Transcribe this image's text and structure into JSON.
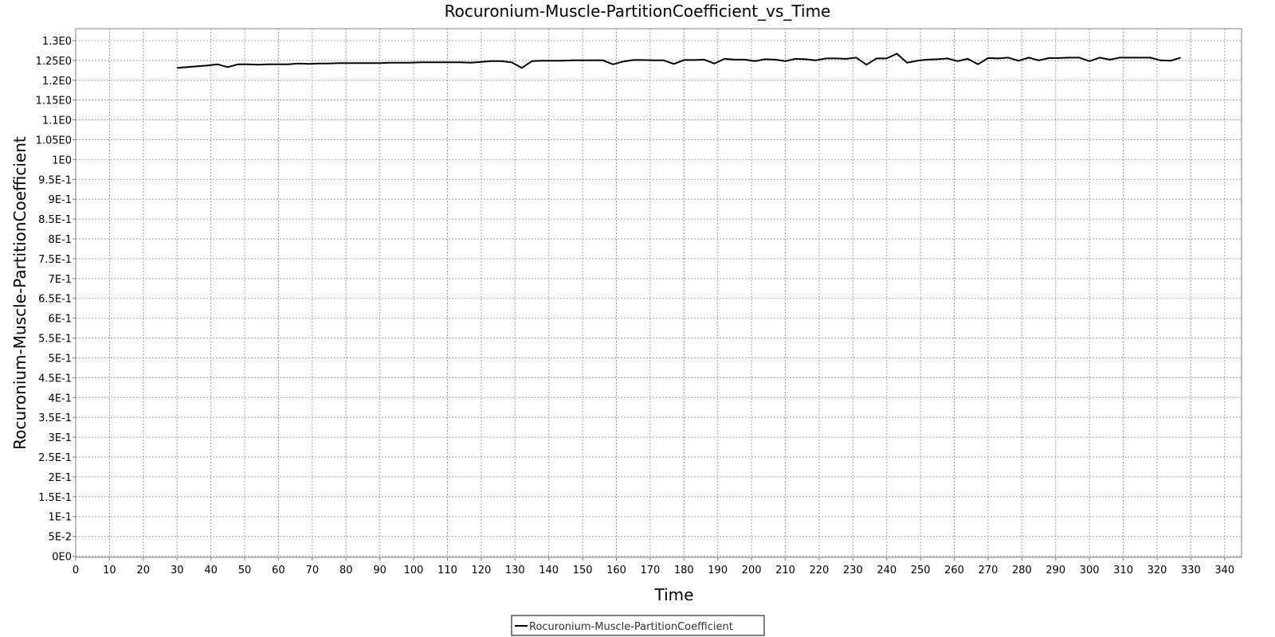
{
  "chart_data": {
    "type": "line",
    "title": "Rocuronium-Muscle-PartitionCoefficient_vs_Time",
    "xlabel": "Time",
    "ylabel": "Rocuronium-Muscle-PartitionCoefficient",
    "xlim": [
      0,
      345
    ],
    "ylim": [
      -0.003,
      1.33
    ],
    "grid": true,
    "legend_position": "bottom-center",
    "x_ticks": [
      0,
      10,
      20,
      30,
      40,
      50,
      60,
      70,
      80,
      90,
      100,
      110,
      120,
      130,
      140,
      150,
      160,
      170,
      180,
      190,
      200,
      210,
      220,
      230,
      240,
      250,
      260,
      270,
      280,
      290,
      300,
      310,
      320,
      330,
      340
    ],
    "y_ticks": [
      {
        "value": 0,
        "label": "0E0"
      },
      {
        "value": 0.05,
        "label": "5E-2"
      },
      {
        "value": 0.1,
        "label": "1E-1"
      },
      {
        "value": 0.15,
        "label": "1.5E-1"
      },
      {
        "value": 0.2,
        "label": "2E-1"
      },
      {
        "value": 0.25,
        "label": "2.5E-1"
      },
      {
        "value": 0.3,
        "label": "3E-1"
      },
      {
        "value": 0.35,
        "label": "3.5E-1"
      },
      {
        "value": 0.4,
        "label": "4E-1"
      },
      {
        "value": 0.45,
        "label": "4.5E-1"
      },
      {
        "value": 0.5,
        "label": "5E-1"
      },
      {
        "value": 0.55,
        "label": "5.5E-1"
      },
      {
        "value": 0.6,
        "label": "6E-1"
      },
      {
        "value": 0.65,
        "label": "6.5E-1"
      },
      {
        "value": 0.7,
        "label": "7E-1"
      },
      {
        "value": 0.75,
        "label": "7.5E-1"
      },
      {
        "value": 0.8,
        "label": "8E-1"
      },
      {
        "value": 0.85,
        "label": "8.5E-1"
      },
      {
        "value": 0.9,
        "label": "9E-1"
      },
      {
        "value": 0.95,
        "label": "9.5E-1"
      },
      {
        "value": 1.0,
        "label": "1E0"
      },
      {
        "value": 1.05,
        "label": "1.05E0"
      },
      {
        "value": 1.1,
        "label": "1.1E0"
      },
      {
        "value": 1.15,
        "label": "1.15E0"
      },
      {
        "value": 1.2,
        "label": "1.2E0"
      },
      {
        "value": 1.25,
        "label": "1.25E0"
      },
      {
        "value": 1.3,
        "label": "1.3E0"
      }
    ],
    "series": [
      {
        "name": "Rocuronium-Muscle-PartitionCoefficient",
        "color": "#000000",
        "x": [
          30,
          33,
          36,
          39,
          42,
          45,
          48,
          51,
          54,
          57,
          60,
          63,
          66,
          69,
          72,
          75,
          78,
          81,
          84,
          87,
          90,
          93,
          96,
          99,
          102,
          105,
          108,
          111,
          114,
          117,
          120,
          123,
          126,
          129,
          132,
          135,
          138,
          141,
          144,
          147,
          150,
          153,
          156,
          159,
          162,
          165,
          168,
          171,
          174,
          177,
          180,
          183,
          186,
          189,
          192,
          195,
          198,
          201,
          204,
          207,
          210,
          213,
          216,
          219,
          222,
          225,
          228,
          231,
          234,
          237,
          240,
          243,
          246,
          249,
          252,
          255,
          258,
          261,
          264,
          267,
          270,
          273,
          276,
          279,
          282,
          285,
          288,
          291,
          294,
          297,
          300,
          303,
          306,
          309,
          312,
          315,
          318,
          321,
          324,
          327
        ],
        "y": [
          1.231,
          1.233,
          1.235,
          1.237,
          1.24,
          1.233,
          1.24,
          1.24,
          1.239,
          1.24,
          1.24,
          1.24,
          1.242,
          1.241,
          1.242,
          1.242,
          1.243,
          1.243,
          1.243,
          1.243,
          1.243,
          1.244,
          1.244,
          1.244,
          1.245,
          1.245,
          1.245,
          1.245,
          1.245,
          1.244,
          1.246,
          1.248,
          1.248,
          1.245,
          1.231,
          1.248,
          1.249,
          1.249,
          1.249,
          1.25,
          1.25,
          1.25,
          1.25,
          1.24,
          1.247,
          1.251,
          1.251,
          1.25,
          1.25,
          1.241,
          1.251,
          1.251,
          1.252,
          1.242,
          1.254,
          1.252,
          1.252,
          1.248,
          1.253,
          1.252,
          1.248,
          1.254,
          1.253,
          1.25,
          1.255,
          1.255,
          1.254,
          1.257,
          1.239,
          1.255,
          1.255,
          1.267,
          1.244,
          1.249,
          1.252,
          1.253,
          1.255,
          1.248,
          1.254,
          1.24,
          1.256,
          1.255,
          1.257,
          1.249,
          1.257,
          1.25,
          1.256,
          1.256,
          1.257,
          1.257,
          1.248,
          1.257,
          1.252,
          1.257,
          1.257,
          1.257,
          1.257,
          1.25,
          1.249,
          1.257
        ]
      }
    ]
  }
}
